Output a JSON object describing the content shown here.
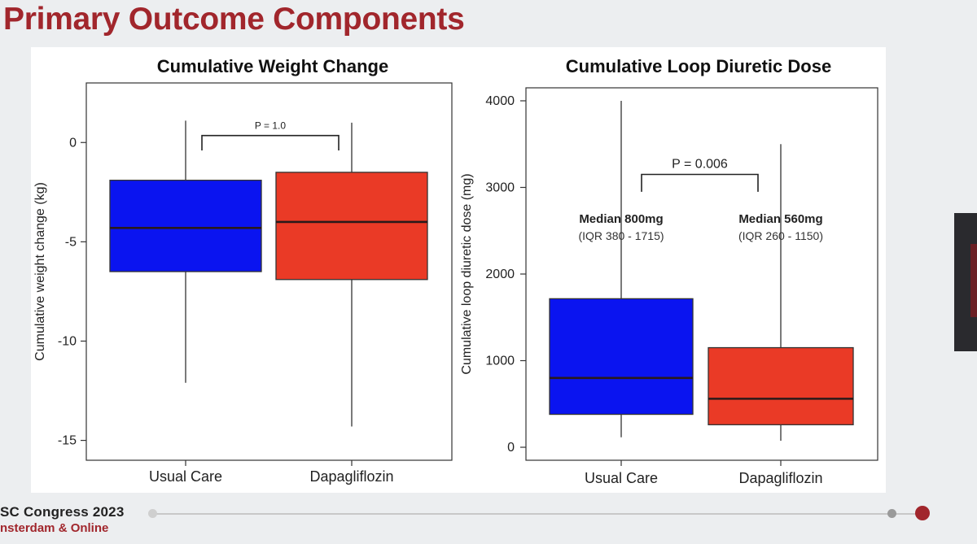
{
  "slide": {
    "title": "Primary Outcome Components",
    "footer_title": "SC Congress 2023",
    "footer_subtitle": "nsterdam & Online"
  },
  "colors": {
    "usual_care": "#0a14f0",
    "dapagliflozin": "#ea3a26",
    "title_red": "#a1262c"
  },
  "chart_data": [
    {
      "type": "box",
      "title": "Cumulative Weight Change",
      "xlabel": "",
      "ylabel": "Cumulative weight change (kg)",
      "ylim": [
        -16,
        3
      ],
      "yticks": [
        0,
        -5,
        -10,
        -15
      ],
      "ytick_labels": [
        "0",
        "-5",
        "-10",
        "-15"
      ],
      "categories": [
        "Usual Care",
        "Dapagliflozin"
      ],
      "boxes": [
        {
          "q1": -6.5,
          "median": -4.3,
          "q3": -1.9,
          "min": -12.1,
          "max": 1.1
        },
        {
          "q1": -6.9,
          "median": -4.0,
          "q3": -1.5,
          "min": -14.3,
          "max": 1.0
        }
      ],
      "comparison": {
        "label": "P = 1.0",
        "y": -0.4,
        "y_top": 0.35
      },
      "annotations": []
    },
    {
      "type": "box",
      "title": "Cumulative Loop Diuretic Dose",
      "xlabel": "",
      "ylabel": "Cumulative loop diuretic dose (mg)",
      "ylim": [
        -150,
        4150
      ],
      "yticks": [
        0,
        1000,
        2000,
        3000,
        4000
      ],
      "ytick_labels": [
        "0",
        "1000",
        "2000",
        "3000",
        "4000"
      ],
      "categories": [
        "Usual Care",
        "Dapagliflozin"
      ],
      "boxes": [
        {
          "q1": 380,
          "median": 800,
          "q3": 1715,
          "min": 115,
          "max": 4000
        },
        {
          "q1": 260,
          "median": 560,
          "q3": 1150,
          "min": 75,
          "max": 3500
        }
      ],
      "comparison": {
        "label": "P = 0.006",
        "y": 2950,
        "y_top": 3150
      },
      "annotations": [
        {
          "line1": "Median 800mg",
          "line2": "(IQR 380 - 1715)"
        },
        {
          "line1": "Median 560mg",
          "line2": "(IQR 260 - 1150)"
        }
      ]
    }
  ]
}
